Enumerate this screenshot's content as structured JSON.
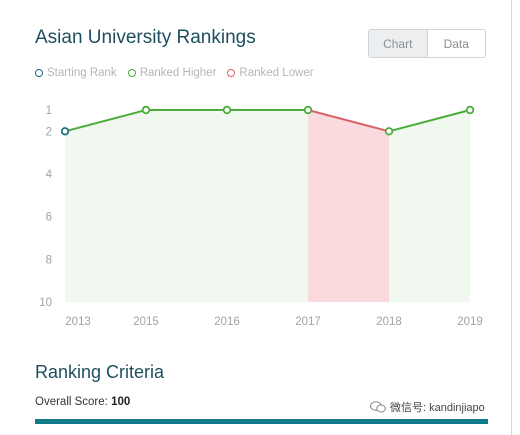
{
  "header": {
    "title": "Asian University Rankings"
  },
  "toggle": {
    "chart_label": "Chart",
    "data_label": "Data"
  },
  "legend": {
    "starting": "Starting Rank",
    "higher": "Ranked Higher",
    "lower": "Ranked Lower"
  },
  "colors": {
    "start": "#1f6b82",
    "higher": "#4cae3a",
    "lower": "#d9626a",
    "higher_fill": "#f1f8ef",
    "lower_fill": "#fbdadd"
  },
  "chart_data": {
    "type": "line",
    "x": [
      "2013",
      "2015",
      "2016",
      "2017",
      "2018",
      "2019"
    ],
    "values": [
      2,
      1,
      1,
      1,
      2,
      1
    ],
    "y_ticks": [
      1,
      2,
      4,
      6,
      8,
      10
    ],
    "ylim": [
      1,
      10
    ],
    "y_inverted": true,
    "segments": [
      "start",
      "higher",
      "higher",
      "higher",
      "lower",
      "higher"
    ],
    "legend_position": "top-left"
  },
  "criteria": {
    "title": "Ranking Criteria",
    "overall_label": "Overall Score:",
    "overall_value": "100",
    "overall_fraction": 1.0
  },
  "watermark": {
    "text": "微信号: kandinjiapo"
  }
}
